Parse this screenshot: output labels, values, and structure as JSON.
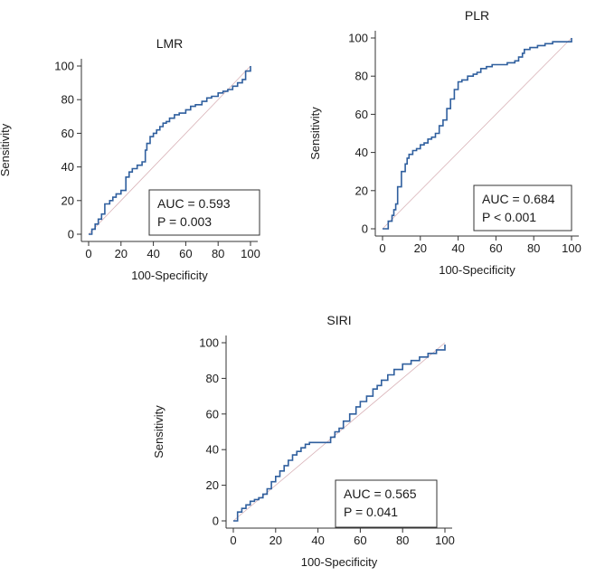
{
  "chart_data": [
    {
      "type": "line",
      "title": "LMR",
      "xlabel": "100-Specificity",
      "ylabel": "Sensitivity",
      "xlim": [
        0,
        100
      ],
      "ylim": [
        0,
        100
      ],
      "ticks": [
        "0",
        "20",
        "40",
        "60",
        "80",
        "100"
      ],
      "auc_label": "AUC = 0.593",
      "p_label": "P = 0.003",
      "colors": {
        "roc": "#2f5f9e",
        "diagonal": "#d9b3b8",
        "axis": "#333333"
      },
      "series": [
        {
          "name": "ROC",
          "x": [
            0,
            2,
            4,
            6,
            8,
            10,
            10,
            13,
            15,
            17,
            20,
            23,
            23,
            25,
            27,
            30,
            33,
            35,
            35,
            36,
            38,
            38,
            40,
            42,
            44,
            46,
            48,
            50,
            53,
            56,
            60,
            63,
            66,
            70,
            73,
            76,
            80,
            83,
            86,
            89,
            92,
            95,
            97,
            97,
            100
          ],
          "y": [
            0,
            3,
            6,
            9,
            12,
            14,
            18,
            20,
            22,
            24,
            26,
            28,
            34,
            37,
            39,
            41,
            43,
            46,
            50,
            54,
            56,
            58,
            60,
            62,
            64,
            66,
            67,
            69,
            71,
            72,
            74,
            76,
            77,
            79,
            81,
            82,
            84,
            85,
            86,
            88,
            90,
            92,
            94,
            97,
            100
          ]
        },
        {
          "name": "diagonal",
          "x": [
            0,
            100
          ],
          "y": [
            0,
            100
          ]
        }
      ]
    },
    {
      "type": "line",
      "title": "PLR",
      "xlabel": "100-Specificity",
      "ylabel": "Sensitivity",
      "xlim": [
        0,
        100
      ],
      "ylim": [
        0,
        100
      ],
      "ticks": [
        "0",
        "20",
        "40",
        "60",
        "80",
        "100"
      ],
      "auc_label": "AUC = 0.684",
      "p_label": "P < 0.001",
      "colors": {
        "roc": "#2f5f9e",
        "diagonal": "#d9b3b8",
        "axis": "#333333"
      },
      "series": [
        {
          "name": "ROC",
          "x": [
            0,
            3,
            5,
            6,
            7,
            8,
            8,
            10,
            10,
            12,
            13,
            14,
            16,
            18,
            20,
            22,
            24,
            26,
            28,
            30,
            32,
            34,
            34,
            36,
            36,
            38,
            40,
            42,
            45,
            48,
            50,
            52,
            55,
            58,
            62,
            66,
            70,
            72,
            74,
            75,
            78,
            82,
            86,
            90,
            95,
            100
          ],
          "y": [
            0,
            4,
            7,
            10,
            13,
            18,
            22,
            24,
            30,
            34,
            37,
            39,
            41,
            42,
            44,
            45,
            47,
            48,
            50,
            54,
            57,
            59,
            63,
            66,
            68,
            73,
            77,
            78,
            80,
            81,
            82,
            84,
            85,
            86,
            86,
            87,
            88,
            90,
            92,
            94,
            95,
            96,
            97,
            98,
            98,
            100
          ]
        },
        {
          "name": "diagonal",
          "x": [
            0,
            100
          ],
          "y": [
            0,
            100
          ]
        }
      ]
    },
    {
      "type": "line",
      "title": "SIRI",
      "xlabel": "100-Specificity",
      "ylabel": "Sensitivity",
      "xlim": [
        0,
        100
      ],
      "ylim": [
        0,
        100
      ],
      "ticks": [
        "0",
        "20",
        "40",
        "60",
        "80",
        "100"
      ],
      "auc_label": "AUC = 0.565",
      "p_label": "P = 0.041",
      "colors": {
        "roc": "#2f5f9e",
        "diagonal": "#d9b3b8",
        "axis": "#333333"
      },
      "series": [
        {
          "name": "ROC",
          "x": [
            0,
            2,
            4,
            6,
            8,
            10,
            12,
            14,
            16,
            18,
            20,
            22,
            24,
            26,
            28,
            30,
            32,
            34,
            36,
            40,
            44,
            46,
            48,
            50,
            52,
            55,
            58,
            60,
            63,
            66,
            68,
            70,
            73,
            76,
            80,
            84,
            88,
            92,
            96,
            100
          ],
          "y": [
            0,
            5,
            7,
            9,
            11,
            12,
            13,
            15,
            18,
            22,
            25,
            28,
            31,
            34,
            37,
            39,
            41,
            43,
            44,
            44,
            44,
            47,
            50,
            52,
            56,
            60,
            64,
            67,
            70,
            74,
            76,
            79,
            82,
            85,
            88,
            90,
            92,
            94,
            96,
            99
          ]
        },
        {
          "name": "diagonal",
          "x": [
            0,
            100
          ],
          "y": [
            0,
            100
          ]
        }
      ]
    }
  ]
}
